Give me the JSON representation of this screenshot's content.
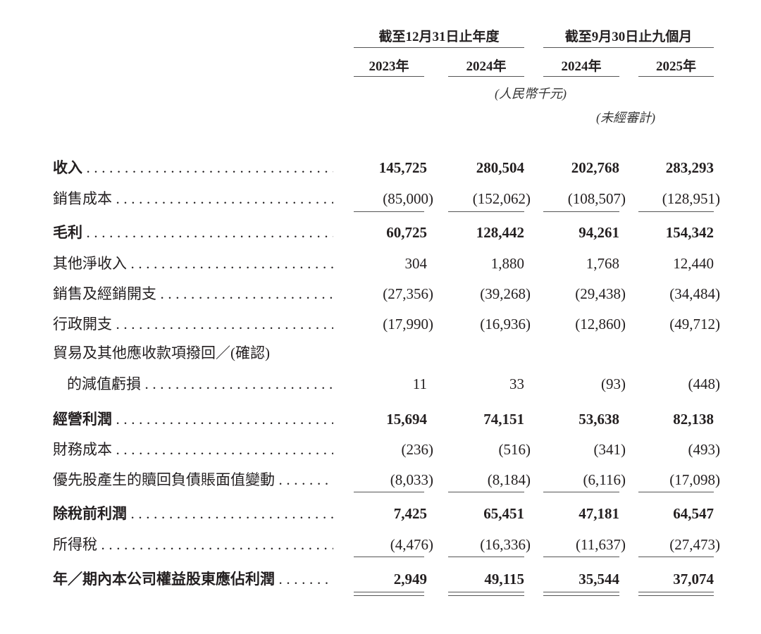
{
  "header": {
    "group_annual": "截至12月31日止年度",
    "group_nine_months": "截至9月30日止九個月",
    "years": [
      "2023年",
      "2024年",
      "2024年",
      "2025年"
    ],
    "currency_note": "(人民幣千元)",
    "unaudited_note": "(未經審計)"
  },
  "rows": [
    {
      "label": "收入",
      "bold": true,
      "values": [
        "145,725",
        "280,504",
        "202,768",
        "283,293"
      ]
    },
    {
      "label": "銷售成本",
      "bold": false,
      "values": [
        "(85,000)",
        "(152,062)",
        "(108,507)",
        "(128,951)"
      ]
    },
    {
      "label": "毛利",
      "bold": true,
      "values": [
        "60,725",
        "128,442",
        "94,261",
        "154,342"
      ]
    },
    {
      "label": "其他淨收入",
      "bold": false,
      "values": [
        "304",
        "1,880",
        "1,768",
        "12,440"
      ]
    },
    {
      "label": "銷售及經銷開支",
      "bold": false,
      "values": [
        "(27,356)",
        "(39,268)",
        "(29,438)",
        "(34,484)"
      ]
    },
    {
      "label": "行政開支",
      "bold": false,
      "values": [
        "(17,990)",
        "(16,936)",
        "(12,860)",
        "(49,712)"
      ]
    },
    {
      "label": "貿易及其他應收款項撥回／(確認)",
      "label_line2": "的減值虧損",
      "bold": false,
      "values": [
        "11",
        "33",
        "(93)",
        "(448)"
      ]
    },
    {
      "label": "經營利潤",
      "bold": true,
      "values": [
        "15,694",
        "74,151",
        "53,638",
        "82,138"
      ]
    },
    {
      "label": "財務成本",
      "bold": false,
      "values": [
        "(236)",
        "(516)",
        "(341)",
        "(493)"
      ]
    },
    {
      "label": "優先股產生的贖回負債賬面值變動",
      "bold": false,
      "values": [
        "(8,033)",
        "(8,184)",
        "(6,116)",
        "(17,098)"
      ]
    },
    {
      "label": "除稅前利潤",
      "bold": true,
      "values": [
        "7,425",
        "65,451",
        "47,181",
        "64,547"
      ]
    },
    {
      "label": "所得稅",
      "bold": false,
      "values": [
        "(4,476)",
        "(16,336)",
        "(11,637)",
        "(27,473)"
      ]
    },
    {
      "label": "年／期內本公司權益股東應佔利潤",
      "bold": true,
      "values": [
        "2,949",
        "49,115",
        "35,544",
        "37,074"
      ]
    }
  ]
}
